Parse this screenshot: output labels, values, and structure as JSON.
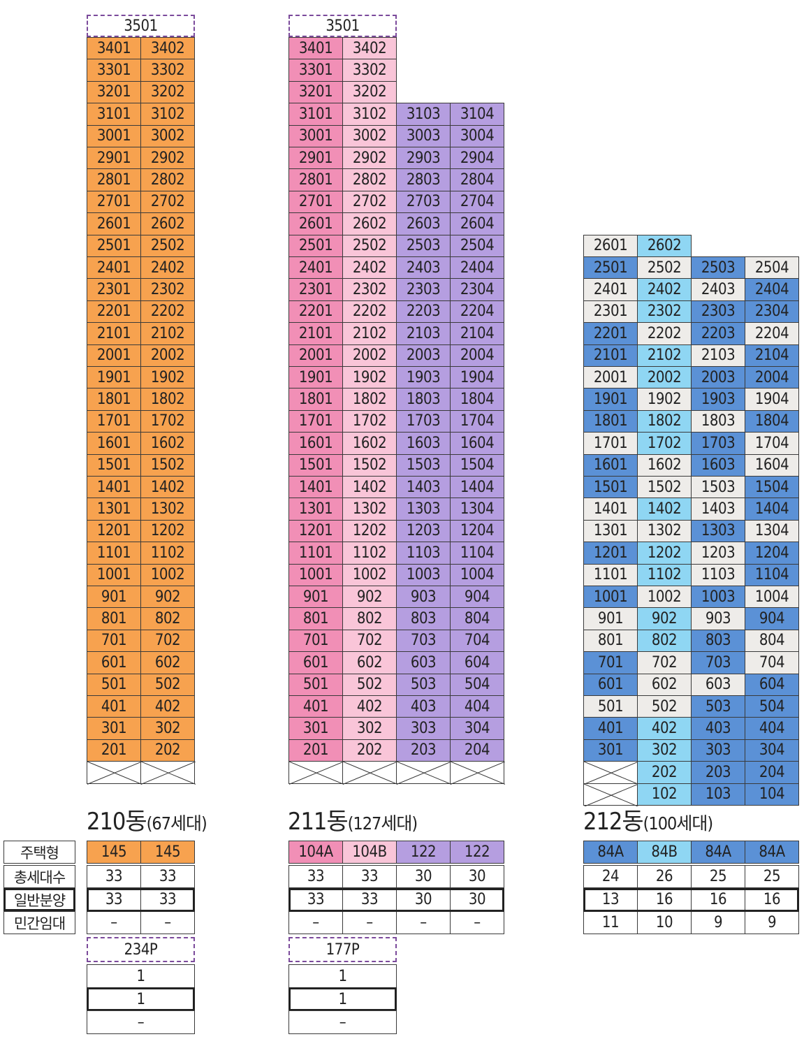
{
  "colors": {
    "orange": "#f7a24f",
    "pink_dark": "#f18fb6",
    "pink_light": "#f9c5d8",
    "purple": "#b59ee0",
    "white_gray": "#eeece9",
    "light_blue": "#8fd6f3",
    "blue": "#5b91d6"
  },
  "row_labels": [
    "주택형",
    "총세대수",
    "일반분양",
    "민간임대"
  ],
  "buildings": [
    {
      "id": "210",
      "title": "210동",
      "subtitle": "(67세대)",
      "cols": 2,
      "penthouse": "3501",
      "floors_top": 34,
      "floor_units": [
        [
          34,
          [
            1,
            2
          ]
        ],
        [
          2,
          [
            1,
            2
          ]
        ]
      ],
      "pilotis": [
        1,
        2
      ],
      "types": [
        {
          "label": "145",
          "color": "orange"
        },
        {
          "label": "145",
          "color": "orange"
        }
      ],
      "stats": {
        "total": [
          "33",
          "33"
        ],
        "general": [
          "33",
          "33"
        ],
        "rental": [
          "–",
          "–"
        ]
      },
      "penthouse_stats": {
        "type": "234P",
        "total": "1",
        "general": "1",
        "rental": "–"
      }
    },
    {
      "id": "211",
      "title": "211동",
      "subtitle": "(127세대)",
      "cols": 4,
      "penthouse": "3501",
      "types": [
        {
          "label": "104A",
          "color": "pink_dark"
        },
        {
          "label": "104B",
          "color": "pink_light"
        },
        {
          "label": "122",
          "color": "purple"
        },
        {
          "label": "122",
          "color": "purple"
        }
      ],
      "stats": {
        "total": [
          "33",
          "33",
          "30",
          "30"
        ],
        "general": [
          "33",
          "33",
          "30",
          "30"
        ],
        "rental": [
          "–",
          "–",
          "–",
          "–"
        ]
      },
      "penthouse_stats": {
        "type": "177P",
        "total": "1",
        "general": "1",
        "rental": "–"
      }
    },
    {
      "id": "212",
      "title": "212동",
      "subtitle": "(100세대)",
      "cols": 4,
      "types": [
        {
          "label": "84A",
          "color": "blue"
        },
        {
          "label": "84B",
          "color": "light_blue"
        },
        {
          "label": "84A",
          "color": "blue"
        },
        {
          "label": "84A",
          "color": "blue"
        }
      ],
      "stats": {
        "total": [
          "24",
          "26",
          "25",
          "25"
        ],
        "general": [
          "13",
          "16",
          "16",
          "16"
        ],
        "rental": [
          "11",
          "10",
          "9",
          "9"
        ]
      },
      "unit_colors": {
        "26": [
          "white_gray",
          "light_blue"
        ],
        "25": [
          "blue",
          "white_gray",
          "blue",
          "white_gray"
        ],
        "24": [
          "white_gray",
          "light_blue",
          "white_gray",
          "blue"
        ],
        "23": [
          "white_gray",
          "light_blue",
          "blue",
          "blue"
        ],
        "22": [
          "blue",
          "white_gray",
          "blue",
          "white_gray"
        ],
        "21": [
          "blue",
          "light_blue",
          "white_gray",
          "blue"
        ],
        "20": [
          "white_gray",
          "light_blue",
          "blue",
          "blue"
        ],
        "19": [
          "blue",
          "white_gray",
          "blue",
          "white_gray"
        ],
        "18": [
          "blue",
          "light_blue",
          "white_gray",
          "blue"
        ],
        "17": [
          "white_gray",
          "light_blue",
          "blue",
          "white_gray"
        ],
        "16": [
          "blue",
          "white_gray",
          "blue",
          "white_gray"
        ],
        "15": [
          "blue",
          "white_gray",
          "white_gray",
          "blue"
        ],
        "14": [
          "white_gray",
          "light_blue",
          "white_gray",
          "blue"
        ],
        "13": [
          "white_gray",
          "white_gray",
          "blue",
          "white_gray"
        ],
        "12": [
          "blue",
          "light_blue",
          "white_gray",
          "blue"
        ],
        "11": [
          "white_gray",
          "light_blue",
          "white_gray",
          "blue"
        ],
        "10": [
          "blue",
          "white_gray",
          "blue",
          "white_gray"
        ],
        "9": [
          "white_gray",
          "light_blue",
          "white_gray",
          "blue"
        ],
        "8": [
          "white_gray",
          "light_blue",
          "blue",
          "white_gray"
        ],
        "7": [
          "blue",
          "white_gray",
          "blue",
          "white_gray"
        ],
        "6": [
          "blue",
          "white_gray",
          "white_gray",
          "blue"
        ],
        "5": [
          "white_gray",
          "white_gray",
          "blue",
          "blue"
        ],
        "4": [
          "blue",
          "light_blue",
          "blue",
          "blue"
        ],
        "3": [
          "blue",
          "light_blue",
          "blue",
          "blue"
        ],
        "2": [
          "pilotis",
          "light_blue",
          "blue",
          "blue"
        ],
        "1": [
          "pilotis",
          "light_blue",
          "blue",
          "blue"
        ]
      }
    }
  ],
  "units": {
    "b210": [
      "3401",
      "3402",
      "3301",
      "3302",
      "3201",
      "3202",
      "3101",
      "3102",
      "3001",
      "3002",
      "2901",
      "2902",
      "2801",
      "2802",
      "2701",
      "2702",
      "2601",
      "2602",
      "2501",
      "2502",
      "2401",
      "2402",
      "2301",
      "2302",
      "2201",
      "2202",
      "2101",
      "2102",
      "2001",
      "2002",
      "1901",
      "1902",
      "1801",
      "1802",
      "1701",
      "1702",
      "1601",
      "1602",
      "1501",
      "1502",
      "1401",
      "1402",
      "1301",
      "1302",
      "1201",
      "1202",
      "1101",
      "1102",
      "1001",
      "1002",
      "901",
      "902",
      "801",
      "802",
      "701",
      "702",
      "601",
      "602",
      "501",
      "502",
      "401",
      "402",
      "301",
      "302",
      "201",
      "202"
    ],
    "b211_top": [
      "3401",
      "3402",
      "3301",
      "3302",
      "3201",
      "3202"
    ],
    "b211": [
      "3101",
      "3102",
      "3103",
      "3104",
      "3001",
      "3002",
      "3003",
      "3004",
      "2901",
      "2902",
      "2903",
      "2904",
      "2801",
      "2802",
      "2803",
      "2804",
      "2701",
      "2702",
      "2703",
      "2704",
      "2601",
      "2602",
      "2603",
      "2604",
      "2501",
      "2502",
      "2503",
      "2504",
      "2401",
      "2402",
      "2403",
      "2404",
      "2301",
      "2302",
      "2303",
      "2304",
      "2201",
      "2202",
      "2203",
      "2204",
      "2101",
      "2102",
      "2103",
      "2104",
      "2001",
      "2002",
      "2003",
      "2004",
      "1901",
      "1902",
      "1903",
      "1904",
      "1801",
      "1802",
      "1803",
      "1804",
      "1701",
      "1702",
      "1703",
      "1704",
      "1601",
      "1602",
      "1603",
      "1604",
      "1501",
      "1502",
      "1503",
      "1504",
      "1401",
      "1402",
      "1403",
      "1404",
      "1301",
      "1302",
      "1303",
      "1304",
      "1201",
      "1202",
      "1203",
      "1204",
      "1101",
      "1102",
      "1103",
      "1104",
      "1001",
      "1002",
      "1003",
      "1004",
      "901",
      "902",
      "903",
      "904",
      "801",
      "802",
      "803",
      "804",
      "701",
      "702",
      "703",
      "704",
      "601",
      "602",
      "603",
      "604",
      "501",
      "502",
      "503",
      "504",
      "401",
      "402",
      "403",
      "404",
      "301",
      "302",
      "303",
      "304",
      "201",
      "202",
      "203",
      "204"
    ],
    "b212_top": [
      "2601",
      "2602"
    ],
    "b212": [
      "2501",
      "2502",
      "2503",
      "2504",
      "2401",
      "2402",
      "2403",
      "2404",
      "2301",
      "2302",
      "2303",
      "2304",
      "2201",
      "2202",
      "2203",
      "2204",
      "2101",
      "2102",
      "2103",
      "2104",
      "2001",
      "2002",
      "2003",
      "2004",
      "1901",
      "1902",
      "1903",
      "1904",
      "1801",
      "1802",
      "1803",
      "1804",
      "1701",
      "1702",
      "1703",
      "1704",
      "1601",
      "1602",
      "1603",
      "1604",
      "1501",
      "1502",
      "1503",
      "1504",
      "1401",
      "1402",
      "1403",
      "1404",
      "1301",
      "1302",
      "1303",
      "1304",
      "1201",
      "1202",
      "1203",
      "1204",
      "1101",
      "1102",
      "1103",
      "1104",
      "1001",
      "1002",
      "1003",
      "1004",
      "901",
      "902",
      "903",
      "904",
      "801",
      "802",
      "803",
      "804",
      "701",
      "702",
      "703",
      "704",
      "601",
      "602",
      "603",
      "604",
      "501",
      "502",
      "503",
      "504",
      "401",
      "402",
      "403",
      "404",
      "301",
      "302",
      "303",
      "304"
    ],
    "b212_low": [
      "202",
      "203",
      "204",
      "102",
      "103",
      "104"
    ]
  }
}
